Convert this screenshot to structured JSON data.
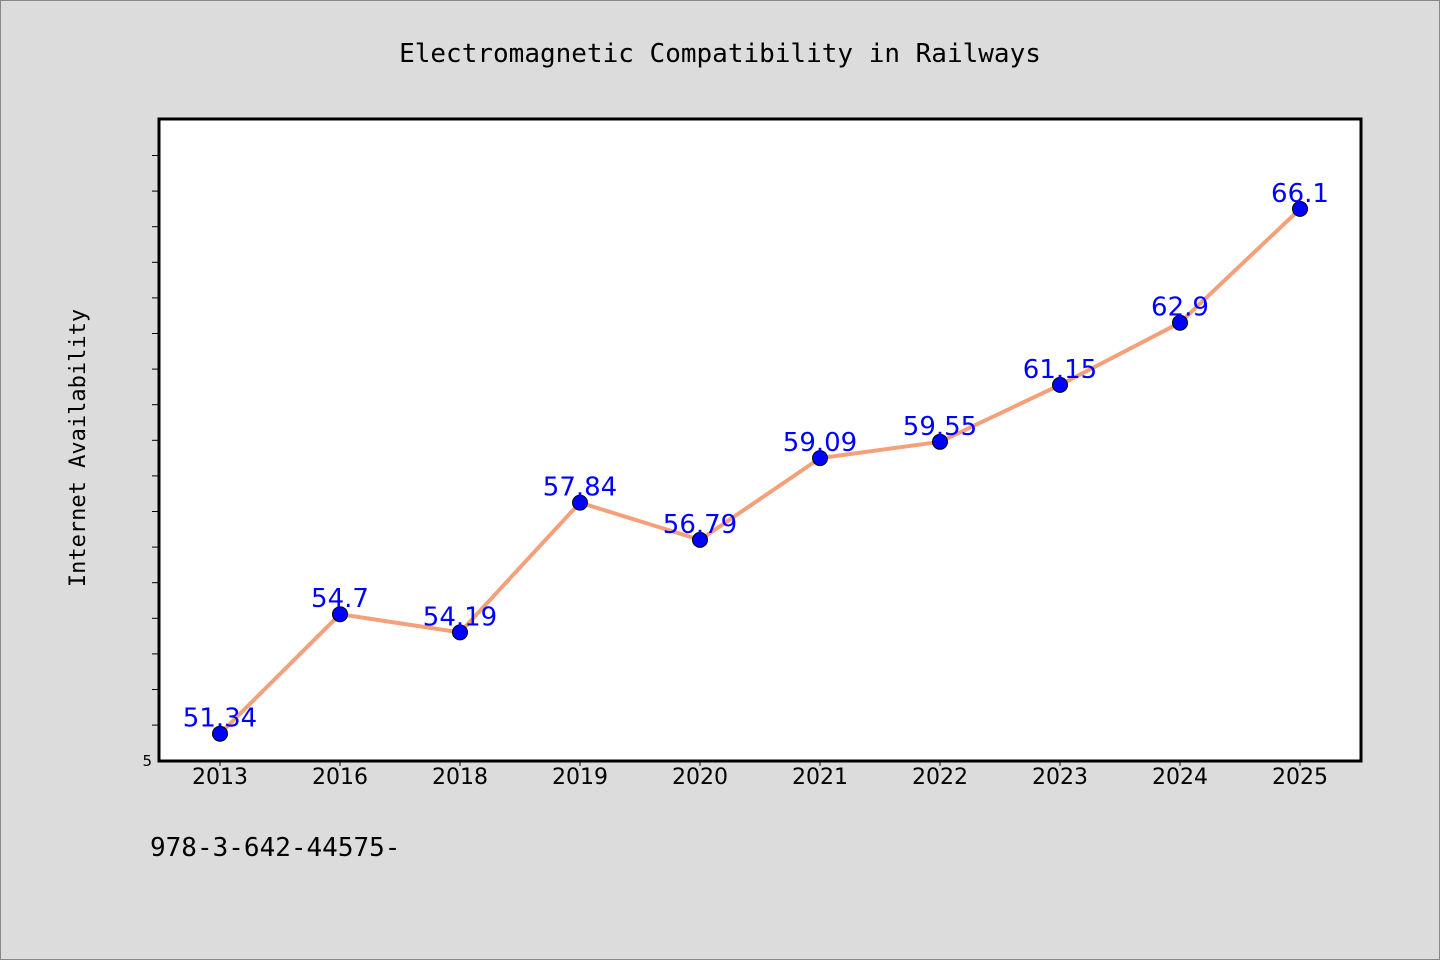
{
  "chart_data": {
    "type": "line",
    "title": "Electromagnetic Compatibility in Railways",
    "xlabel": "",
    "ylabel": "Internet Availability",
    "categories": [
      "2013",
      "2016",
      "2018",
      "2019",
      "2020",
      "2021",
      "2022",
      "2023",
      "2024",
      "2025"
    ],
    "series": [
      {
        "values": [
          51.34,
          54.7,
          54.19,
          57.84,
          56.79,
          59.09,
          59.55,
          61.15,
          62.9,
          66.1
        ],
        "data_labels": [
          "51.34",
          "54.7",
          "54.19",
          "57.84",
          "56.79",
          "59.09",
          "59.55",
          "61.15",
          "62.9",
          "66.1"
        ]
      }
    ],
    "ylim": [
      50.6,
      68.6
    ],
    "ytick_labels": [
      "5"
    ],
    "grid": false,
    "legend": "none",
    "colors": {
      "line": "#f4a07a",
      "marker": "#0000ff",
      "data_label": "#0000ff",
      "background": "#dcdcdc",
      "plot_background": "#ffffff"
    }
  },
  "footer": {
    "text": "978-3-642-44575-"
  }
}
